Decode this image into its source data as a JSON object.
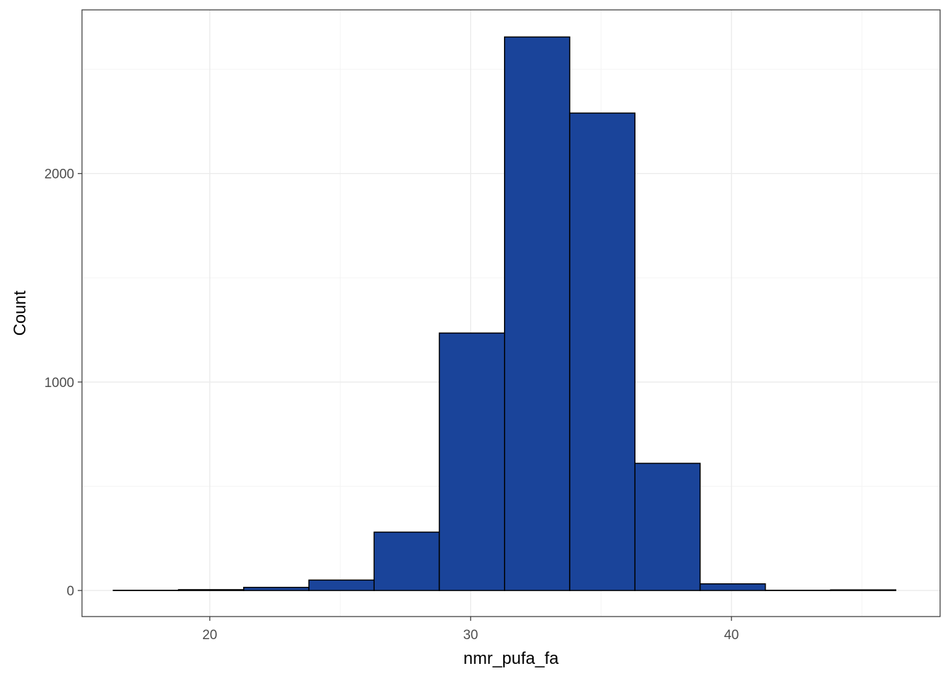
{
  "chart_data": {
    "type": "bar",
    "subtype": "histogram",
    "xlabel": "nmr_pufa_fa",
    "ylabel": "Count",
    "xlim": [
      15.1,
      48.0
    ],
    "ylim": [
      -125,
      2785
    ],
    "x_ticks": [
      20,
      30,
      40
    ],
    "y_ticks": [
      0,
      1000,
      2000
    ],
    "x_tick_labels": [
      "20",
      "30",
      "40"
    ],
    "y_tick_labels": [
      "0",
      "1000",
      "2000"
    ],
    "grid": true,
    "legend": "none",
    "bin_width": 2.5,
    "bins": [
      {
        "x0": 16.3,
        "x1": 18.8,
        "count": 1
      },
      {
        "x0": 18.8,
        "x1": 21.3,
        "count": 4
      },
      {
        "x0": 21.3,
        "x1": 23.8,
        "count": 15
      },
      {
        "x0": 23.8,
        "x1": 26.3,
        "count": 50
      },
      {
        "x0": 26.3,
        "x1": 28.8,
        "count": 280
      },
      {
        "x0": 28.8,
        "x1": 31.3,
        "count": 1235
      },
      {
        "x0": 31.3,
        "x1": 33.8,
        "count": 2655
      },
      {
        "x0": 33.8,
        "x1": 36.3,
        "count": 2290
      },
      {
        "x0": 36.3,
        "x1": 38.8,
        "count": 610
      },
      {
        "x0": 38.8,
        "x1": 41.3,
        "count": 32
      },
      {
        "x0": 41.3,
        "x1": 43.8,
        "count": 1
      },
      {
        "x0": 43.8,
        "x1": 46.3,
        "count": 3
      }
    ],
    "colors": {
      "bar_fill": "#1a449a",
      "bar_stroke": "#000000",
      "grid_major": "#ebebeb",
      "grid_minor": "#f4f4f4",
      "panel_border": "#333333"
    }
  }
}
